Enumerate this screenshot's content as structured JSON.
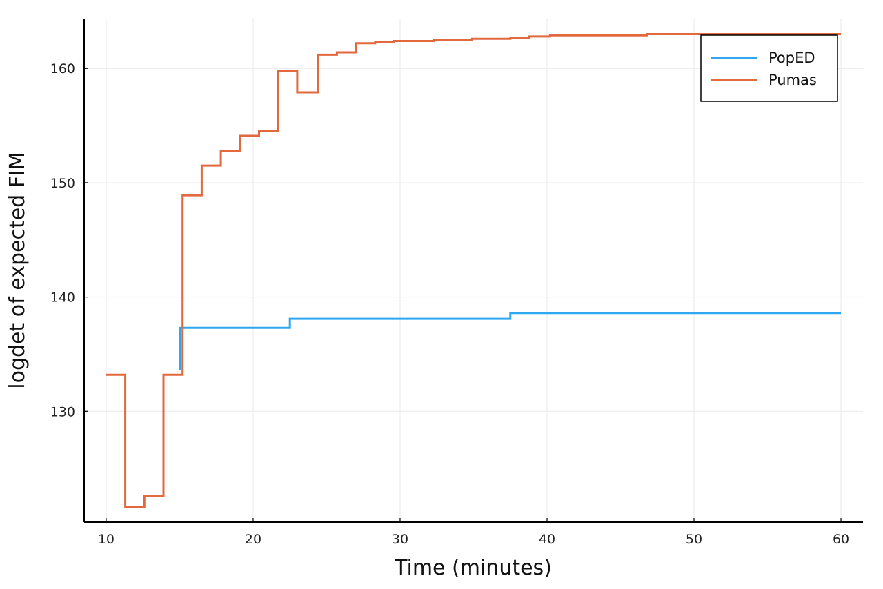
{
  "chart_data": {
    "type": "line",
    "xlabel": "Time (minutes)",
    "ylabel": "logdet of expected FIM",
    "xlim": [
      8.5,
      61.5
    ],
    "ylim": [
      120.3,
      164.3
    ],
    "xticks": [
      10,
      20,
      30,
      40,
      50,
      60
    ],
    "yticks": [
      130,
      140,
      150,
      160
    ],
    "grid": true,
    "legend_position": "top-right",
    "colors": {
      "PopED": "#2fa7f0",
      "Pumas": "#e2693e",
      "grid": "#ececec",
      "axis": "#000000"
    },
    "series": [
      {
        "name": "PopED",
        "step": true,
        "x": [
          15.0,
          15.0,
          22.5,
          37.5,
          60.0
        ],
        "y": [
          133.6,
          137.3,
          138.1,
          138.6,
          138.6
        ]
      },
      {
        "name": "Pumas",
        "step": true,
        "x": [
          10.0,
          11.3,
          12.6,
          13.9,
          15.2,
          16.5,
          17.8,
          19.1,
          20.4,
          21.7,
          23.0,
          24.4,
          25.7,
          27.0,
          28.3,
          29.6,
          31.0,
          32.3,
          33.6,
          34.9,
          36.2,
          37.5,
          38.8,
          40.2,
          41.5,
          42.8,
          44.1,
          45.4,
          46.8,
          48.1,
          49.4,
          50.7,
          52.0,
          53.3,
          54.6,
          56.0,
          57.3,
          58.6,
          60.0
        ],
        "y": [
          133.2,
          121.6,
          122.6,
          133.2,
          148.9,
          151.5,
          152.8,
          154.1,
          154.5,
          159.8,
          157.9,
          161.2,
          161.4,
          162.2,
          162.3,
          162.4,
          162.4,
          162.5,
          162.5,
          162.6,
          162.6,
          162.7,
          162.8,
          162.9,
          162.9,
          162.9,
          162.9,
          162.9,
          163.0,
          163.0,
          163.0,
          163.0,
          163.0,
          163.0,
          163.0,
          163.0,
          163.0,
          163.0,
          163.0
        ]
      }
    ]
  }
}
